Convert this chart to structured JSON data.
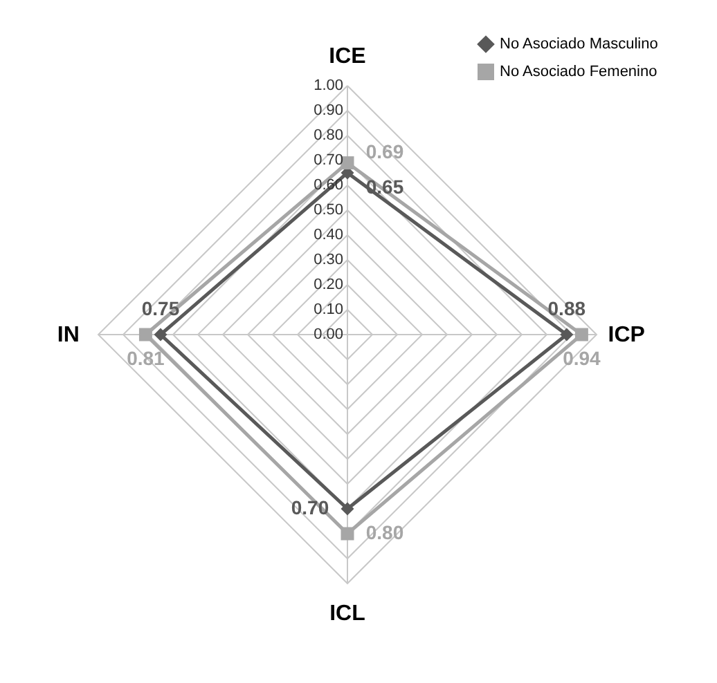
{
  "chart_data": {
    "type": "radar",
    "categories": [
      "ICE",
      "ICP",
      "ICL",
      "IN"
    ],
    "series": [
      {
        "name": "No Asociado Masculino",
        "color": "#595959",
        "marker": "diamond",
        "values": [
          0.65,
          0.88,
          0.7,
          0.75
        ],
        "value_labels": [
          "0.65",
          "0.88",
          "0.70",
          "0.75"
        ]
      },
      {
        "name": "No Asociado Femenino",
        "color": "#a6a6a6",
        "marker": "square",
        "values": [
          0.69,
          0.94,
          0.8,
          0.81
        ],
        "value_labels": [
          "0.69",
          "0.94",
          "0.80",
          "0.81"
        ]
      }
    ],
    "ylim": [
      0,
      1
    ],
    "yticks": [
      {
        "value": 0,
        "label": "0.00"
      },
      {
        "value": 0.1,
        "label": "0.10"
      },
      {
        "value": 0.2,
        "label": "0.20"
      },
      {
        "value": 0.3,
        "label": "0.30"
      },
      {
        "value": 0.4,
        "label": "0.40"
      },
      {
        "value": 0.5,
        "label": "0.50"
      },
      {
        "value": 0.6,
        "label": "0.60"
      },
      {
        "value": 0.7,
        "label": "0.70"
      },
      {
        "value": 0.8,
        "label": "0.80"
      },
      {
        "value": 0.9,
        "label": "0.90"
      },
      {
        "value": 1,
        "label": "1.00"
      }
    ],
    "grid": true,
    "legend": "top right",
    "line_style": "solid"
  }
}
